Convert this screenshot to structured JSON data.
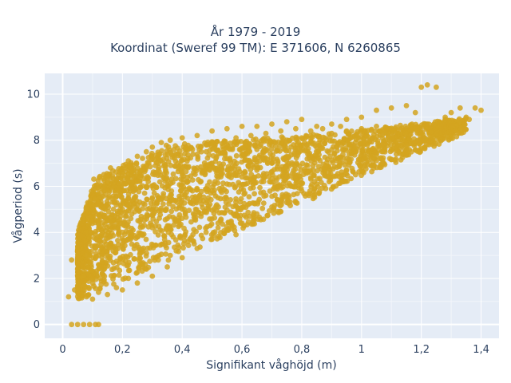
{
  "chart_data": {
    "type": "scatter",
    "title": "År 1979 - 2019",
    "subtitle": "Koordinat (Sweref 99 TM): E 371606, N 6260865",
    "xlabel": "Signifikant våghöjd (m)",
    "ylabel": "Vågperiod (s)",
    "xlim": [
      -0.06,
      1.46
    ],
    "ylim": [
      -0.6,
      10.9
    ],
    "xticks": [
      0,
      0.2,
      0.4,
      0.6,
      0.8,
      1,
      1.2,
      1.4
    ],
    "xtick_labels": [
      "0",
      "0,2",
      "0,4",
      "0,6",
      "0,8",
      "1",
      "1,2",
      "1,4"
    ],
    "yticks": [
      0,
      2,
      4,
      6,
      8,
      10
    ],
    "ytick_labels": [
      "0",
      "2",
      "4",
      "6",
      "8",
      "10"
    ],
    "grid": true,
    "marker_color": "#d4a520",
    "background": "#e5ecf6",
    "points": [
      [
        0.03,
        0
      ],
      [
        0.05,
        0
      ],
      [
        0.07,
        0
      ],
      [
        0.09,
        0
      ],
      [
        0.11,
        0
      ],
      [
        0.12,
        0
      ],
      [
        0.02,
        1.2
      ],
      [
        0.04,
        1.5
      ],
      [
        0.05,
        2.4
      ],
      [
        0.03,
        2.8
      ],
      [
        0.06,
        3.5
      ],
      [
        0.08,
        4.0
      ],
      [
        0.1,
        4.7
      ],
      [
        0.12,
        5.3
      ],
      [
        0.14,
        5.8
      ],
      [
        0.15,
        6.2
      ],
      [
        0.16,
        6.8
      ],
      [
        0.18,
        6.3
      ],
      [
        0.2,
        6.6
      ],
      [
        0.22,
        7.1
      ],
      [
        0.25,
        7.3
      ],
      [
        0.28,
        7.5
      ],
      [
        0.3,
        7.7
      ],
      [
        0.33,
        7.9
      ],
      [
        0.36,
        8.0
      ],
      [
        0.4,
        8.1
      ],
      [
        0.45,
        8.2
      ],
      [
        0.5,
        8.4
      ],
      [
        0.55,
        8.5
      ],
      [
        0.6,
        8.6
      ],
      [
        0.65,
        8.6
      ],
      [
        0.7,
        8.7
      ],
      [
        0.75,
        8.8
      ],
      [
        0.8,
        8.9
      ],
      [
        0.85,
        8.6
      ],
      [
        0.9,
        8.7
      ],
      [
        0.95,
        8.9
      ],
      [
        1.0,
        9.0
      ],
      [
        1.05,
        9.3
      ],
      [
        1.1,
        9.4
      ],
      [
        1.15,
        9.5
      ],
      [
        1.2,
        10.3
      ],
      [
        1.22,
        10.4
      ],
      [
        1.25,
        10.3
      ],
      [
        1.18,
        9.2
      ],
      [
        1.28,
        9.0
      ],
      [
        1.3,
        9.2
      ],
      [
        1.33,
        9.4
      ],
      [
        1.35,
        9.0
      ],
      [
        1.38,
        9.4
      ],
      [
        1.4,
        9.3
      ],
      [
        1.36,
        8.9
      ],
      [
        1.3,
        8.6
      ],
      [
        1.25,
        8.3
      ],
      [
        1.2,
        8.0
      ],
      [
        1.15,
        7.8
      ],
      [
        1.1,
        7.6
      ],
      [
        1.05,
        7.3
      ],
      [
        1.0,
        7.0
      ],
      [
        0.95,
        6.7
      ],
      [
        0.9,
        6.4
      ],
      [
        0.85,
        6.1
      ],
      [
        0.8,
        5.8
      ],
      [
        0.75,
        5.5
      ],
      [
        0.7,
        5.1
      ],
      [
        0.65,
        4.8
      ],
      [
        0.6,
        4.4
      ],
      [
        0.55,
        4.1
      ],
      [
        0.5,
        3.7
      ],
      [
        0.45,
        3.3
      ],
      [
        0.4,
        2.9
      ],
      [
        0.35,
        2.5
      ],
      [
        0.3,
        2.1
      ],
      [
        0.25,
        1.8
      ],
      [
        0.2,
        1.5
      ],
      [
        0.15,
        1.3
      ],
      [
        0.1,
        1.1
      ],
      [
        0.08,
        1.2
      ],
      [
        0.12,
        1.4
      ],
      [
        0.18,
        1.6
      ],
      [
        0.22,
        2.0
      ],
      [
        0.28,
        2.4
      ],
      [
        0.32,
        2.8
      ],
      [
        0.38,
        3.2
      ],
      [
        0.42,
        3.6
      ],
      [
        0.48,
        4.0
      ],
      [
        0.52,
        4.4
      ],
      [
        0.58,
        4.8
      ],
      [
        0.62,
        5.2
      ],
      [
        0.68,
        5.6
      ],
      [
        0.72,
        6.0
      ],
      [
        0.78,
        6.3
      ],
      [
        0.82,
        6.6
      ],
      [
        0.88,
        6.9
      ],
      [
        0.92,
        7.2
      ],
      [
        0.98,
        7.5
      ],
      [
        1.02,
        7.8
      ],
      [
        1.08,
        8.0
      ],
      [
        1.12,
        8.2
      ],
      [
        1.18,
        8.5
      ],
      [
        1.22,
        8.7
      ],
      [
        1.28,
        8.9
      ],
      [
        0.2,
        4.0
      ],
      [
        0.25,
        5.0
      ],
      [
        0.3,
        5.5
      ],
      [
        0.35,
        6.0
      ],
      [
        0.4,
        6.5
      ],
      [
        0.45,
        6.8
      ],
      [
        0.5,
        7.0
      ],
      [
        0.55,
        7.2
      ],
      [
        0.6,
        7.4
      ],
      [
        0.65,
        7.6
      ],
      [
        0.7,
        7.8
      ],
      [
        0.75,
        8.0
      ],
      [
        0.8,
        8.1
      ],
      [
        0.85,
        8.2
      ],
      [
        0.9,
        8.3
      ],
      [
        0.95,
        8.4
      ],
      [
        1.0,
        8.5
      ],
      [
        1.05,
        8.6
      ],
      [
        0.15,
        3.0
      ],
      [
        0.2,
        3.5
      ],
      [
        0.25,
        3.8
      ],
      [
        0.3,
        4.2
      ],
      [
        0.35,
        4.6
      ],
      [
        0.4,
        5.0
      ],
      [
        0.45,
        5.4
      ],
      [
        0.5,
        5.8
      ],
      [
        0.55,
        6.1
      ],
      [
        0.6,
        6.4
      ],
      [
        0.65,
        6.7
      ],
      [
        0.7,
        7.0
      ],
      [
        0.1,
        2.0
      ],
      [
        0.12,
        2.6
      ],
      [
        0.14,
        3.2
      ],
      [
        0.16,
        3.8
      ],
      [
        0.18,
        4.4
      ],
      [
        0.2,
        5.0
      ],
      [
        0.22,
        5.5
      ],
      [
        0.24,
        6.0
      ],
      [
        0.26,
        6.4
      ],
      [
        0.28,
        6.9
      ],
      [
        0.3,
        7.2
      ],
      [
        0.32,
        7.0
      ],
      [
        0.05,
        1.6
      ],
      [
        0.07,
        2.1
      ],
      [
        0.09,
        2.7
      ],
      [
        0.11,
        3.3
      ],
      [
        0.13,
        3.9
      ],
      [
        0.15,
        4.5
      ],
      [
        0.17,
        5.0
      ],
      [
        0.19,
        5.6
      ],
      [
        0.21,
        6.1
      ],
      [
        0.23,
        6.5
      ],
      [
        0.27,
        6.7
      ],
      [
        0.31,
        6.9
      ],
      [
        0.36,
        3.0
      ],
      [
        0.44,
        3.5
      ],
      [
        0.52,
        4.2
      ],
      [
        0.58,
        3.9
      ],
      [
        0.64,
        4.5
      ],
      [
        0.72,
        4.9
      ],
      [
        0.78,
        5.3
      ],
      [
        0.84,
        5.6
      ],
      [
        0.88,
        5.9
      ],
      [
        0.94,
        6.2
      ],
      [
        0.98,
        6.5
      ],
      [
        1.04,
        6.9
      ],
      [
        0.38,
        7.4
      ],
      [
        0.42,
        7.6
      ],
      [
        0.48,
        7.8
      ],
      [
        0.54,
        7.9
      ],
      [
        0.58,
        8.1
      ],
      [
        0.63,
        8.2
      ],
      [
        0.68,
        8.3
      ],
      [
        0.73,
        8.4
      ],
      [
        0.78,
        8.5
      ],
      [
        0.83,
        8.4
      ],
      [
        0.87,
        8.5
      ],
      [
        0.93,
        8.6
      ]
    ]
  }
}
